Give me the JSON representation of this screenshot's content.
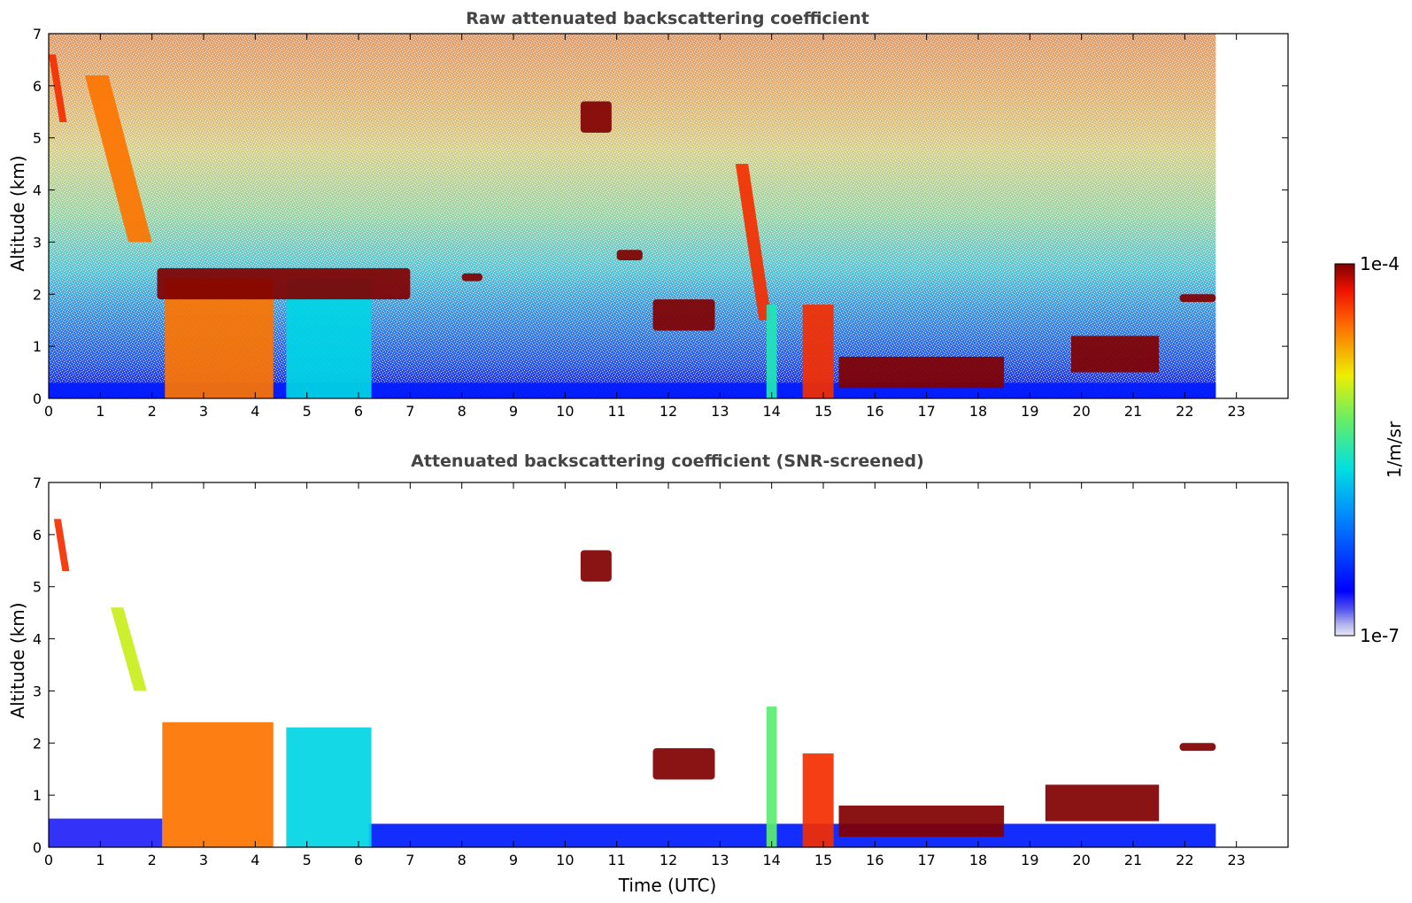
{
  "chart_data": [
    {
      "type": "heatmap",
      "title": "Raw attenuated backscattering coefficient",
      "xlabel": "",
      "ylabel": "Altitude (km)",
      "xlim": [
        0,
        24
      ],
      "ylim": [
        0,
        7
      ],
      "xticks": [
        "0",
        "1",
        "2",
        "3",
        "4",
        "5",
        "6",
        "7",
        "8",
        "9",
        "10",
        "11",
        "12",
        "13",
        "14",
        "15",
        "16",
        "17",
        "18",
        "19",
        "20",
        "21",
        "22",
        "23"
      ],
      "yticks": [
        "0",
        "1",
        "2",
        "3",
        "4",
        "5",
        "6",
        "7"
      ],
      "data_end_time": 22.6,
      "colorscale": "log-jet",
      "features": [
        {
          "kind": "noise_background",
          "x": [
            0,
            22.6
          ],
          "y": [
            0,
            7
          ],
          "value": "increasing with altitude"
        },
        {
          "kind": "surface_layer",
          "x": [
            0,
            22.6
          ],
          "y": [
            0,
            0.3
          ],
          "value": 3e-07
        },
        {
          "kind": "dense_cloud",
          "x": [
            2.25,
            4.35
          ],
          "y": [
            0,
            2.3
          ],
          "value": 3e-05
        },
        {
          "kind": "dense_cloud",
          "x": [
            4.6,
            6.25
          ],
          "y": [
            0,
            2.3
          ],
          "value": 2e-06
        },
        {
          "kind": "cloud_top",
          "x": [
            2.1,
            7.0
          ],
          "y": [
            1.9,
            2.5
          ],
          "value": 0.0001
        },
        {
          "kind": "falling_streak",
          "x": [
            0,
            0.35
          ],
          "y": [
            5.3,
            6.6
          ],
          "value": 5e-05
        },
        {
          "kind": "falling_streak",
          "x": [
            0.7,
            2.0
          ],
          "y": [
            3.0,
            6.2
          ],
          "value": 3e-05
        },
        {
          "kind": "cloud_layer",
          "x": [
            8.0,
            8.4
          ],
          "y": [
            2.25,
            2.4
          ],
          "value": 0.0001
        },
        {
          "kind": "cloud_layer",
          "x": [
            10.3,
            10.9
          ],
          "y": [
            5.1,
            5.7
          ],
          "value": 0.0001
        },
        {
          "kind": "cloud_layer",
          "x": [
            11.0,
            11.5
          ],
          "y": [
            2.65,
            2.85
          ],
          "value": 0.0001
        },
        {
          "kind": "cloud_layer",
          "x": [
            11.7,
            12.9
          ],
          "y": [
            1.3,
            1.9
          ],
          "value": 0.0001
        },
        {
          "kind": "falling_streak",
          "x": [
            13.3,
            14.0
          ],
          "y": [
            1.5,
            4.5
          ],
          "value": 5e-05
        },
        {
          "kind": "dense_cloud",
          "x": [
            13.9,
            14.1
          ],
          "y": [
            0,
            1.8
          ],
          "value": 3e-06
        },
        {
          "kind": "dense_cloud",
          "x": [
            14.6,
            15.2
          ],
          "y": [
            0,
            1.8
          ],
          "value": 5e-05
        },
        {
          "kind": "boundary_cloud",
          "x": [
            15.3,
            18.5
          ],
          "y": [
            0.2,
            0.8
          ],
          "value": 0.0001
        },
        {
          "kind": "boundary_cloud",
          "x": [
            19.8,
            21.5
          ],
          "y": [
            0.5,
            1.2
          ],
          "value": 0.0001
        },
        {
          "kind": "cloud_layer",
          "x": [
            21.9,
            22.6
          ],
          "y": [
            1.85,
            2.0
          ],
          "value": 0.0001
        }
      ]
    },
    {
      "type": "heatmap",
      "title": "Attenuated backscattering coefficient (SNR-screened)",
      "xlabel": "Time (UTC)",
      "ylabel": "Altitude (km)",
      "xlim": [
        0,
        24
      ],
      "ylim": [
        0,
        7
      ],
      "xticks": [
        "0",
        "1",
        "2",
        "3",
        "4",
        "5",
        "6",
        "7",
        "8",
        "9",
        "10",
        "11",
        "12",
        "13",
        "14",
        "15",
        "16",
        "17",
        "18",
        "19",
        "20",
        "21",
        "22",
        "23"
      ],
      "yticks": [
        "0",
        "1",
        "2",
        "3",
        "4",
        "5",
        "6",
        "7"
      ],
      "data_end_time": 22.6,
      "colorscale": "log-jet",
      "features": [
        {
          "kind": "surface_layer",
          "x": [
            0,
            2.2
          ],
          "y": [
            0,
            0.55
          ],
          "value": 2e-07
        },
        {
          "kind": "surface_layer",
          "x": [
            6.2,
            22.6
          ],
          "y": [
            0,
            0.45
          ],
          "value": 3e-07
        },
        {
          "kind": "dense_cloud",
          "x": [
            2.2,
            4.35
          ],
          "y": [
            0,
            2.4
          ],
          "value": 3e-05
        },
        {
          "kind": "dense_cloud",
          "x": [
            4.6,
            6.25
          ],
          "y": [
            0,
            2.3
          ],
          "value": 2e-06
        },
        {
          "kind": "falling_streak",
          "x": [
            0.1,
            0.4
          ],
          "y": [
            5.3,
            6.3
          ],
          "value": 5e-05
        },
        {
          "kind": "falling_streak",
          "x": [
            1.2,
            1.9
          ],
          "y": [
            3.0,
            4.6
          ],
          "value": 1e-05
        },
        {
          "kind": "cloud_layer",
          "x": [
            10.3,
            10.9
          ],
          "y": [
            5.1,
            5.7
          ],
          "value": 0.0001
        },
        {
          "kind": "cloud_layer",
          "x": [
            11.7,
            12.9
          ],
          "y": [
            1.3,
            1.9
          ],
          "value": 0.0001
        },
        {
          "kind": "dense_cloud",
          "x": [
            13.9,
            14.1
          ],
          "y": [
            0,
            2.7
          ],
          "value": 5e-06
        },
        {
          "kind": "dense_cloud",
          "x": [
            14.6,
            15.2
          ],
          "y": [
            0,
            1.8
          ],
          "value": 5e-05
        },
        {
          "kind": "boundary_cloud",
          "x": [
            15.3,
            18.5
          ],
          "y": [
            0.2,
            0.8
          ],
          "value": 0.0001
        },
        {
          "kind": "boundary_cloud",
          "x": [
            19.3,
            21.5
          ],
          "y": [
            0.5,
            1.2
          ],
          "value": 0.0001
        },
        {
          "kind": "cloud_layer",
          "x": [
            21.9,
            22.6
          ],
          "y": [
            1.85,
            2.0
          ],
          "value": 0.0001
        }
      ]
    }
  ],
  "colorbar": {
    "label": "1/m/sr",
    "max_label": "1e-4",
    "min_label": "1e-7",
    "range": [
      1e-07,
      0.0001
    ],
    "scale": "log",
    "colormap": "jet"
  }
}
